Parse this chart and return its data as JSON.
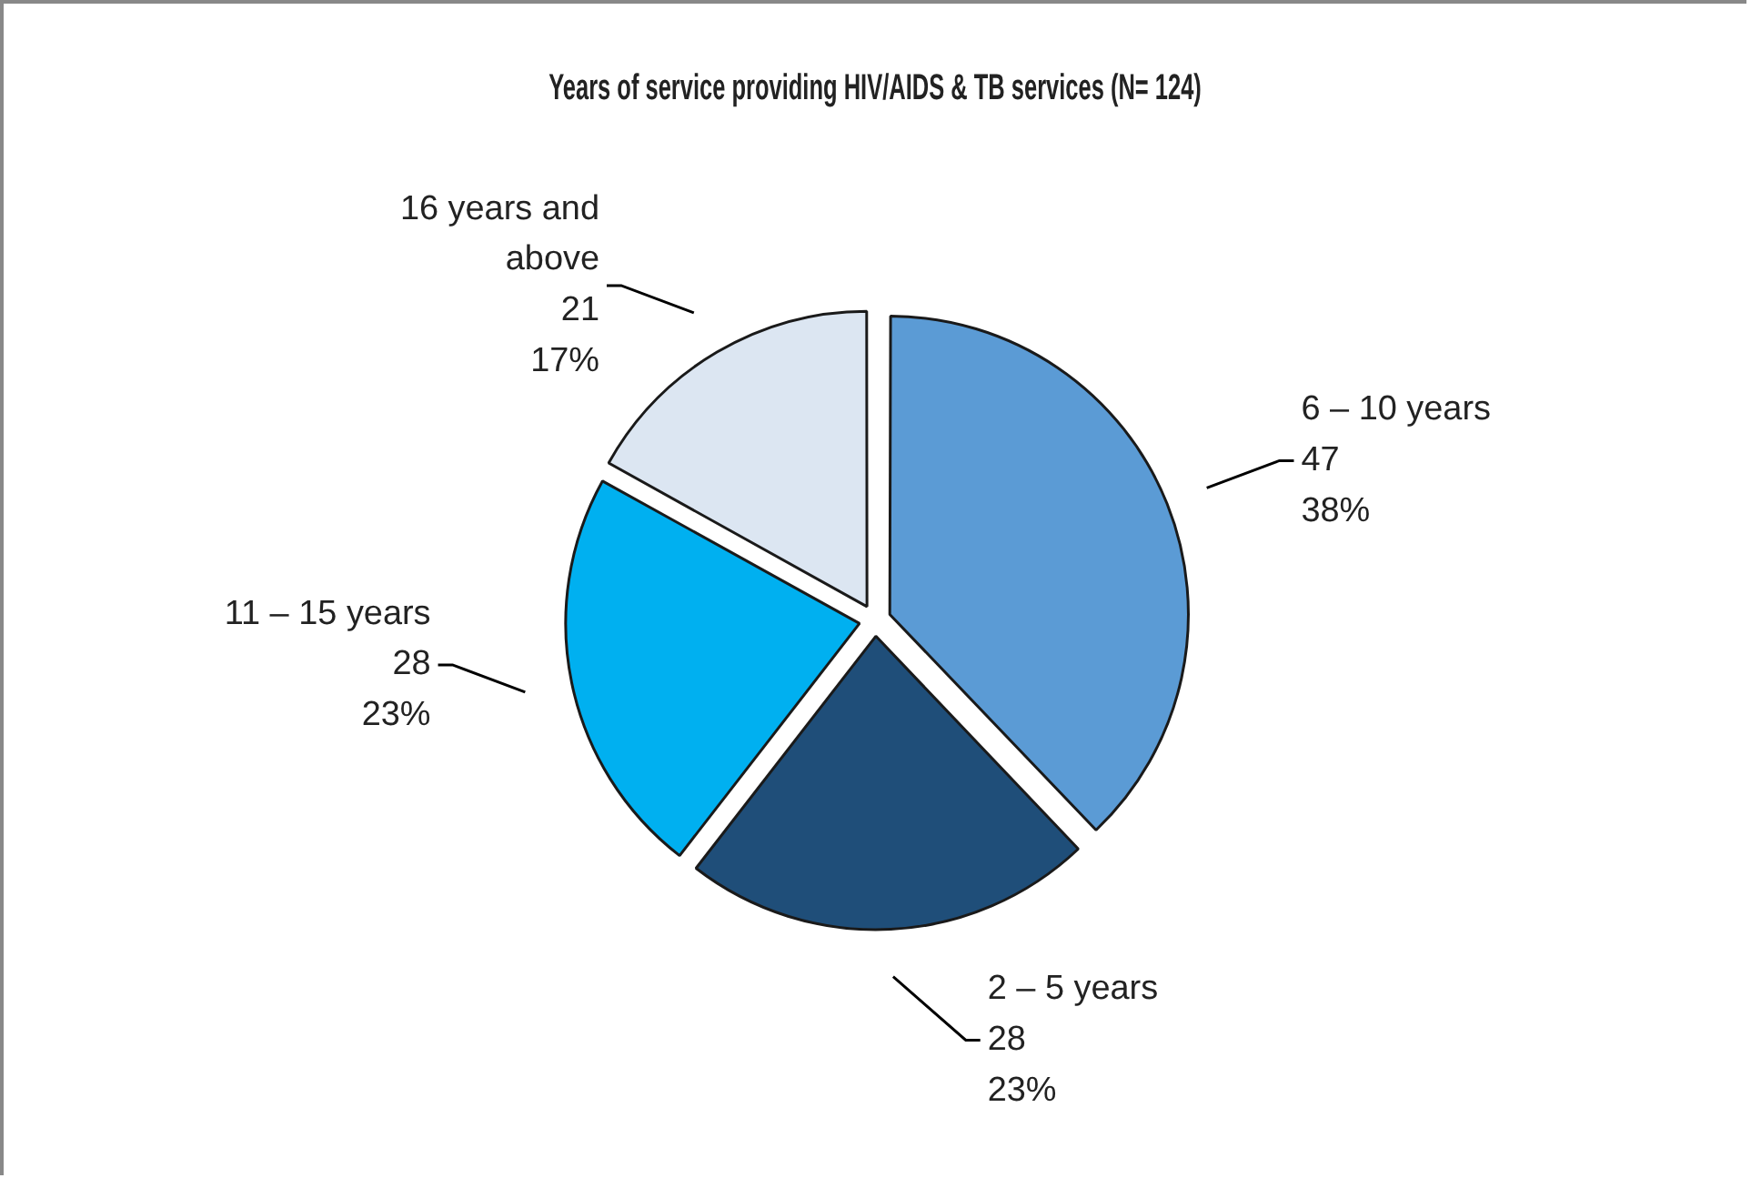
{
  "chart_data": {
    "type": "pie",
    "title": "Years of service providing HIV/AIDS & TB services (N= 124)",
    "categories": [
      "6 – 10 years",
      "2 – 5 years",
      "11 – 15 years",
      "16 years and above"
    ],
    "values": [
      47,
      28,
      28,
      21
    ],
    "colors": [
      "#5b9bd5",
      "#1f4e79",
      "#00b0f0",
      "#dce6f2"
    ],
    "value_labels": [
      "47\n38%",
      "28\n23%",
      "28\n23%",
      "21\n17%"
    ],
    "legend": false
  }
}
